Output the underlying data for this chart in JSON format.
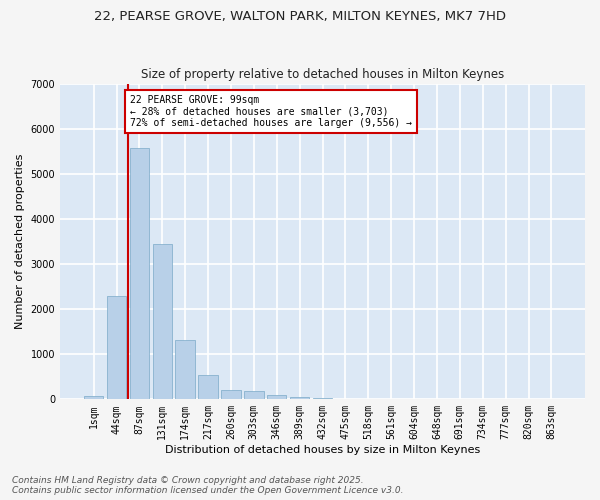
{
  "title_line1": "22, PEARSE GROVE, WALTON PARK, MILTON KEYNES, MK7 7HD",
  "title_line2": "Size of property relative to detached houses in Milton Keynes",
  "xlabel": "Distribution of detached houses by size in Milton Keynes",
  "ylabel": "Number of detached properties",
  "categories": [
    "1sqm",
    "44sqm",
    "87sqm",
    "131sqm",
    "174sqm",
    "217sqm",
    "260sqm",
    "303sqm",
    "346sqm",
    "389sqm",
    "432sqm",
    "475sqm",
    "518sqm",
    "561sqm",
    "604sqm",
    "648sqm",
    "691sqm",
    "734sqm",
    "777sqm",
    "820sqm",
    "863sqm"
  ],
  "values": [
    75,
    2300,
    5580,
    3450,
    1320,
    530,
    210,
    185,
    90,
    55,
    25,
    10,
    5,
    3,
    2,
    1,
    0,
    0,
    0,
    0,
    0
  ],
  "bar_color": "#b8d0e8",
  "bar_edgecolor": "#7aaac8",
  "annotation_text_line1": "22 PEARSE GROVE: 99sqm",
  "annotation_text_line2": "← 28% of detached houses are smaller (3,703)",
  "annotation_text_line3": "72% of semi-detached houses are larger (9,556) →",
  "annotation_box_facecolor": "#ffffff",
  "annotation_box_edgecolor": "#cc0000",
  "vline_color": "#cc0000",
  "ylim": [
    0,
    7000
  ],
  "yticks": [
    0,
    1000,
    2000,
    3000,
    4000,
    5000,
    6000,
    7000
  ],
  "bg_color": "#dce8f5",
  "grid_color": "#ffffff",
  "fig_facecolor": "#f5f5f5",
  "footer_line1": "Contains HM Land Registry data © Crown copyright and database right 2025.",
  "footer_line2": "Contains public sector information licensed under the Open Government Licence v3.0.",
  "title_fontsize": 9.5,
  "subtitle_fontsize": 8.5,
  "axis_label_fontsize": 8,
  "tick_fontsize": 7,
  "footer_fontsize": 6.5,
  "annotation_fontsize": 7
}
